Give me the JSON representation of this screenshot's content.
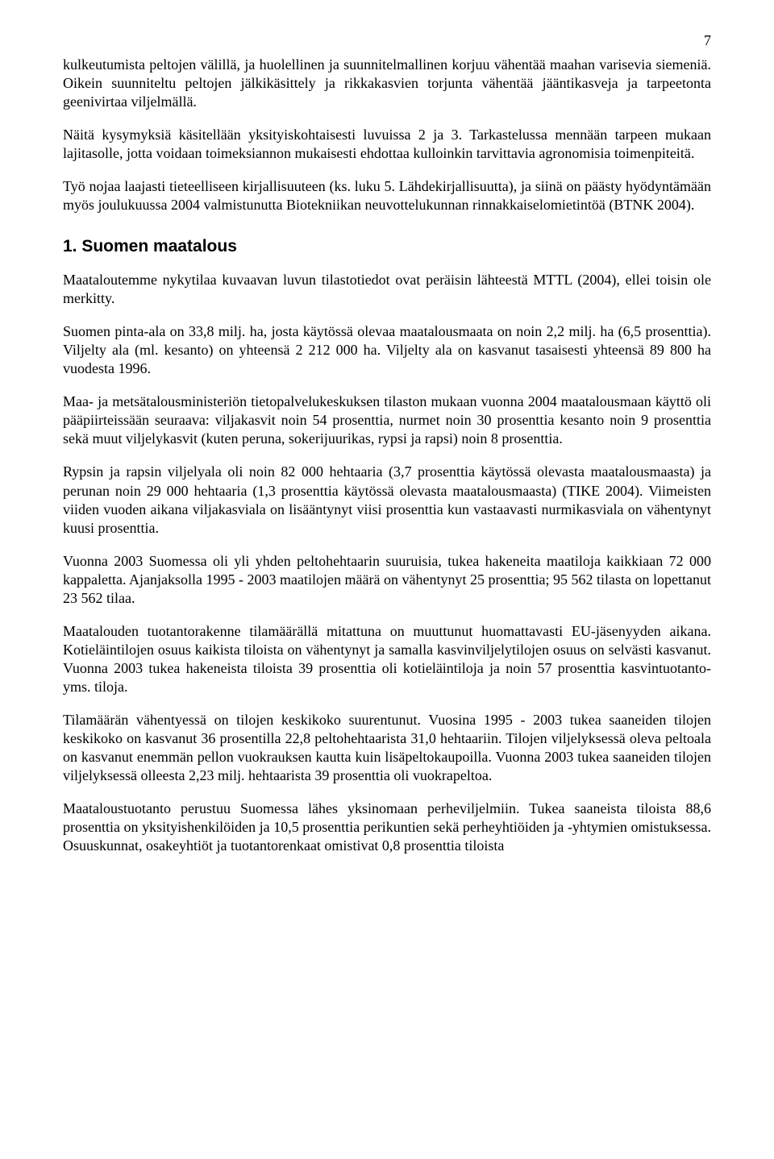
{
  "page_number": "7",
  "paragraphs": {
    "p1": "kulkeutumista peltojen välillä, ja huolellinen ja suunnitelmallinen korjuu vähentää maahan varisevia siemeniä. Oikein suunniteltu peltojen jälkikäsittely ja rikkakasvien torjunta vähentää jääntikasveja ja tarpeetonta geenivirtaa viljelmällä.",
    "p2": "Näitä kysymyksiä käsitellään yksityiskohtaisesti luvuissa 2 ja 3. Tarkastelussa mennään tarpeen mukaan lajitasolle, jotta voidaan toimeksiannon mukaisesti ehdottaa kulloinkin tarvittavia agronomisia toimenpiteitä.",
    "p3": "Työ nojaa laajasti tieteelliseen kirjallisuuteen (ks. luku 5. Lähdekirjallisuutta), ja siinä on päästy hyödyntämään myös joulukuussa 2004 valmistunutta Biotekniikan neuvottelukunnan rinnakkaiselomietintöä (BTNK 2004).",
    "p4": "Maataloutemme nykytilaa kuvaavan luvun tilastotiedot ovat peräisin lähteestä MTTL (2004), ellei toisin ole merkitty.",
    "p5": "Suomen pinta-ala on 33,8 milj. ha, josta käytössä olevaa maatalousmaata on noin 2,2 milj. ha (6,5 prosenttia). Viljelty ala (ml. kesanto) on yhteensä 2 212 000 ha. Viljelty ala on kasvanut tasaisesti yhteensä 89 800 ha vuodesta 1996.",
    "p6": "Maa- ja metsätalousministeriön tietopalvelukeskuksen tilaston mukaan vuonna 2004 maatalousmaan käyttö oli pääpiirteissään seuraava: viljakasvit noin 54 prosenttia, nurmet noin 30 prosenttia kesanto noin 9 prosenttia sekä muut viljelykasvit (kuten peruna, sokerijuurikas, rypsi ja rapsi) noin 8 prosenttia.",
    "p7": "Rypsin ja rapsin viljelyala oli noin 82 000 hehtaaria (3,7 prosenttia käytössä olevasta maatalousmaasta) ja perunan noin 29 000 hehtaaria (1,3 prosenttia käytössä olevasta maatalousmaasta) (TIKE 2004). Viimeisten viiden vuoden aikana viljakasviala on lisääntynyt viisi prosenttia kun vastaavasti nurmikasviala on vähentynyt kuusi prosenttia.",
    "p8": "Vuonna 2003 Suomessa oli yli yhden peltohehtaarin suuruisia, tukea hakeneita maatiloja kaikkiaan 72 000 kappaletta. Ajanjaksolla 1995 - 2003 maatilojen määrä on vähentynyt 25 prosenttia; 95 562 tilasta on lopettanut 23 562 tilaa.",
    "p9": "Maatalouden tuotantorakenne tilamäärällä mitattuna on muuttunut huomattavasti EU-jäsenyyden aikana. Kotieläintilojen osuus kaikista tiloista on vähentynyt ja samalla kasvinviljelytilojen osuus on selvästi kasvanut. Vuonna 2003 tukea hakeneista tiloista 39 prosenttia oli kotieläintiloja ja noin 57 prosenttia kasvintuotanto- yms. tiloja.",
    "p10": "Tilamäärän vähentyessä on tilojen keskikoko suurentunut. Vuosina 1995 - 2003 tukea saaneiden tilojen keskikoko on kasvanut 36 prosentilla 22,8 peltohehtaarista 31,0 hehtaariin. Tilojen viljelyksessä oleva peltoala on kasvanut enemmän pellon vuokrauksen kautta kuin lisäpeltokaupoilla. Vuonna 2003 tukea saaneiden tilojen viljelyksessä olleesta 2,23 milj. hehtaarista 39 prosenttia oli vuokrapeltoa.",
    "p11": "Maataloustuotanto perustuu Suomessa lähes yksinomaan perheviljelmiin. Tukea saaneista tiloista 88,6 prosenttia on yksityishenkilöiden ja 10,5 prosenttia perikuntien sekä perheyhtiöiden ja -yhtymien omistuksessa. Osuuskunnat, osakeyhtiöt ja tuotantorenkaat omistivat 0,8 prosenttia tiloista"
  },
  "heading": "1. Suomen maatalous"
}
